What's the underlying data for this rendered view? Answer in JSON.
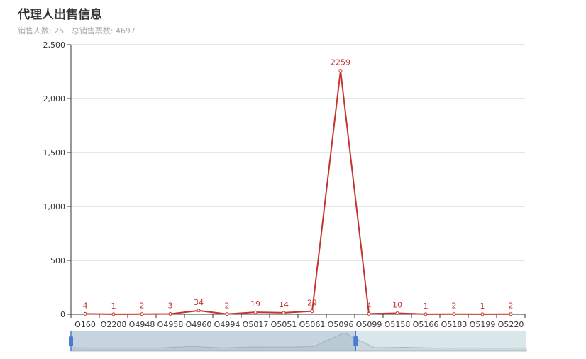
{
  "title": "代理人出售信息",
  "subtitle": {
    "sellers_label": "销售人数:",
    "sellers_value": "25",
    "tickets_label": "总销售票数:",
    "tickets_value": "4697"
  },
  "colors": {
    "series": "#c23531",
    "grid": "#cccccc",
    "axis": "#333333",
    "zoom_selected": "#c6d4df",
    "zoom_bg": "#dae7ea",
    "zoom_handle": "#4a7bd0"
  },
  "chart_data": {
    "type": "line",
    "categories": [
      "O160",
      "O2208",
      "O4948",
      "O4958",
      "O4960",
      "O4994",
      "O5017",
      "O5051",
      "O5061",
      "O5096",
      "O5099",
      "O5158",
      "O5166",
      "O5183",
      "O5199",
      "O5220"
    ],
    "series": [
      {
        "values": [
          4,
          1,
          2,
          3,
          34,
          2,
          19,
          14,
          29,
          2259,
          4,
          10,
          1,
          2,
          1,
          2
        ]
      }
    ],
    "ylim": [
      0,
      2500
    ],
    "yticks": [
      0,
      500,
      1000,
      1500,
      2000,
      2500
    ],
    "ytick_labels": [
      "0",
      "500",
      "1,000",
      "1,500",
      "2,000",
      "2,500"
    ],
    "grid": true,
    "data_labels": true,
    "data_zoom": {
      "start_fraction": 0.0,
      "end_fraction": 0.625
    }
  }
}
